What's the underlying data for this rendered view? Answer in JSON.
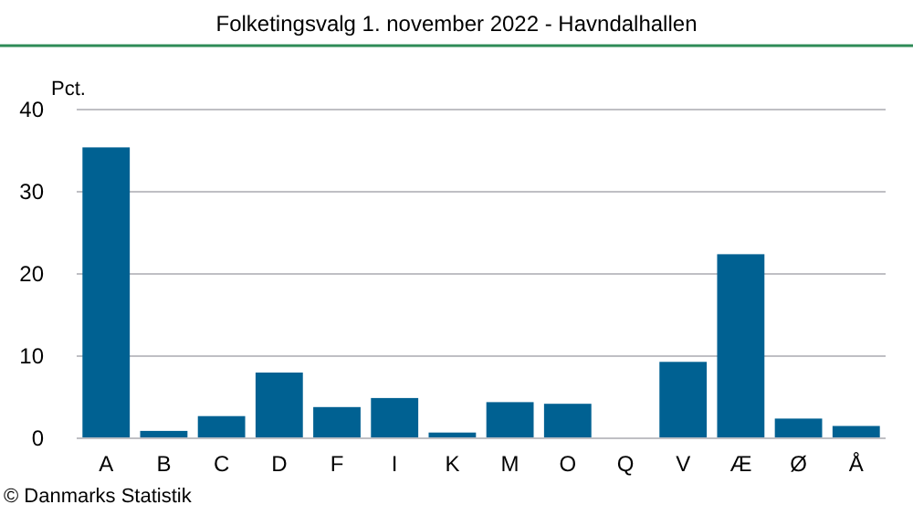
{
  "chart_data": {
    "type": "bar",
    "title": "Folketingsvalg 1. november 2022 - Havndalhallen",
    "ylabel": "Pct.",
    "categories": [
      "A",
      "B",
      "C",
      "D",
      "F",
      "I",
      "K",
      "M",
      "O",
      "Q",
      "V",
      "Æ",
      "Ø",
      "Å"
    ],
    "values": [
      35.4,
      0.9,
      2.7,
      8.0,
      3.8,
      4.9,
      0.7,
      4.4,
      4.2,
      0,
      9.3,
      22.4,
      2.4,
      1.5
    ],
    "color": "#006192",
    "ylim": [
      0,
      40
    ],
    "yticks": [
      0,
      10,
      20,
      30,
      40
    ],
    "grid": "y",
    "annotations": [
      "© Danmarks Statistik"
    ]
  }
}
